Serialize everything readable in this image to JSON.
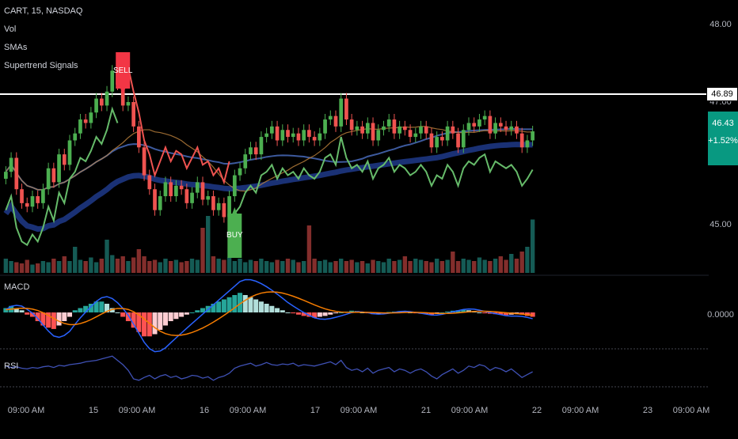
{
  "header": {
    "symbol": "CART, 15, NASDAQ",
    "indicators": [
      "Vol",
      "SMAs",
      "Supertrend Signals"
    ]
  },
  "panes": {
    "macd_label": "MACD",
    "rsi_label": "RSI"
  },
  "price_axis": {
    "ticks": [
      "48.00",
      "47.00",
      "45.00",
      "0.0000"
    ],
    "last_price": "46.89",
    "current_price": "46.43",
    "change": "+1.52%"
  },
  "signals": {
    "sell": "SELL",
    "buy": "BUY"
  },
  "colors": {
    "up": "#26a69a",
    "up_candle": "#4caf50",
    "down": "#ef5350",
    "supertrend_up": "#66bb6a",
    "supertrend_down": "#ef5350",
    "sma_fast": "#42a5f5",
    "sma_slow": "#1e3a8a",
    "macd_line": "#2962ff",
    "signal_line": "#f57c00",
    "rsi_line": "#3f51b5"
  },
  "chart_data": {
    "type": "candlestick",
    "x_tick_labels": [
      "09:00 AM",
      "15",
      "09:00 AM",
      "16",
      "09:00 AM",
      "17",
      "09:00 AM",
      "21",
      "09:00 AM",
      "22",
      "09:00 AM",
      "23",
      "09:00 AM"
    ],
    "y_ticks": [
      48.0,
      47.0,
      45.0
    ],
    "ylim": [
      44.4,
      48.2
    ],
    "close": [
      45.85,
      46.05,
      45.6,
      45.4,
      45.35,
      45.5,
      45.4,
      45.6,
      45.9,
      45.7,
      46.1,
      45.95,
      46.3,
      46.4,
      46.6,
      46.55,
      46.7,
      46.9,
      46.8,
      47.0,
      47.3,
      47.1,
      46.8,
      46.85,
      46.5,
      46.2,
      45.8,
      45.6,
      45.3,
      45.5,
      45.7,
      45.5,
      45.65,
      45.6,
      45.4,
      45.55,
      45.7,
      45.45,
      45.5,
      45.3,
      45.4,
      45.2,
      45.5,
      45.8,
      45.9,
      46.1,
      46.2,
      46.1,
      46.35,
      46.4,
      46.5,
      46.3,
      46.45,
      46.35,
      46.4,
      46.3,
      46.45,
      46.35,
      46.3,
      46.4,
      46.6,
      46.65,
      46.5,
      46.9,
      46.6,
      46.45,
      46.5,
      46.4,
      46.55,
      46.3,
      46.45,
      46.5,
      46.6,
      46.4,
      46.5,
      46.45,
      46.35,
      46.4,
      46.5,
      46.4,
      46.2,
      46.35,
      46.3,
      46.5,
      46.4,
      46.2,
      46.45,
      46.55,
      46.5,
      46.6,
      46.65,
      46.4,
      46.55,
      46.5,
      46.45,
      46.5,
      46.4,
      46.2,
      46.3,
      46.43
    ],
    "volume": [
      0.12,
      0.1,
      0.09,
      0.08,
      0.11,
      0.07,
      0.08,
      0.1,
      0.09,
      0.12,
      0.1,
      0.14,
      0.1,
      0.22,
      0.11,
      0.1,
      0.13,
      0.09,
      0.12,
      0.28,
      0.15,
      0.12,
      0.14,
      0.1,
      0.13,
      0.2,
      0.14,
      0.1,
      0.11,
      0.09,
      0.12,
      0.1,
      0.11,
      0.09,
      0.1,
      0.12,
      0.11,
      0.38,
      0.48,
      0.14,
      0.12,
      0.11,
      0.13,
      0.1,
      0.12,
      0.09,
      0.11,
      0.1,
      0.12,
      0.1,
      0.09,
      0.11,
      0.1,
      0.12,
      0.11,
      0.09,
      0.1,
      0.4,
      0.12,
      0.1,
      0.11,
      0.09,
      0.1,
      0.12,
      0.1,
      0.11,
      0.09,
      0.1,
      0.08,
      0.11,
      0.1,
      0.09,
      0.12,
      0.1,
      0.11,
      0.14,
      0.1,
      0.12,
      0.11,
      0.1,
      0.09,
      0.12,
      0.1,
      0.11,
      0.18,
      0.1,
      0.12,
      0.11,
      0.1,
      0.13,
      0.11,
      0.1,
      0.12,
      0.14,
      0.11,
      0.16,
      0.12,
      0.18,
      0.22,
      0.45
    ],
    "macd_hist": [
      0.1,
      0.15,
      0.1,
      0.05,
      -0.05,
      -0.1,
      -0.2,
      -0.3,
      -0.35,
      -0.38,
      -0.3,
      -0.2,
      -0.1,
      0.05,
      0.1,
      0.15,
      0.2,
      0.25,
      0.25,
      0.2,
      0.1,
      0.0,
      -0.1,
      -0.2,
      -0.35,
      -0.45,
      -0.55,
      -0.55,
      -0.5,
      -0.4,
      -0.3,
      -0.2,
      -0.15,
      -0.1,
      -0.05,
      0.0,
      0.05,
      0.1,
      0.15,
      0.2,
      0.25,
      0.3,
      0.35,
      0.4,
      0.45,
      0.4,
      0.35,
      0.3,
      0.25,
      0.2,
      0.15,
      0.1,
      0.05,
      0.0,
      -0.02,
      -0.05,
      -0.08,
      -0.1,
      -0.12,
      -0.1,
      -0.08,
      -0.05,
      -0.02,
      0.0,
      0.02,
      0.04,
      0.03,
      0.0,
      -0.02,
      -0.04,
      -0.03,
      -0.01,
      0.01,
      0.02,
      0.03,
      0.02,
      0.0,
      -0.02,
      -0.03,
      -0.04,
      -0.05,
      -0.03,
      0.0,
      0.02,
      0.04,
      0.05,
      0.06,
      0.05,
      0.03,
      0.0,
      -0.02,
      -0.03,
      -0.04,
      -0.05,
      -0.06,
      -0.05,
      -0.04,
      -0.05,
      -0.08,
      -0.1
    ],
    "rsi": [
      58,
      56,
      57,
      55,
      54,
      56,
      55,
      57,
      58,
      56,
      59,
      58,
      60,
      61,
      62,
      64,
      65,
      66,
      68,
      70,
      72,
      66,
      60,
      52,
      40,
      38,
      42,
      45,
      40,
      44,
      46,
      42,
      44,
      40,
      42,
      45,
      44,
      41,
      43,
      38,
      42,
      44,
      48,
      55,
      58,
      60,
      62,
      58,
      60,
      63,
      60,
      59,
      61,
      60,
      62,
      58,
      60,
      59,
      58,
      60,
      62,
      64,
      60,
      66,
      56,
      52,
      54,
      50,
      55,
      48,
      52,
      54,
      56,
      50,
      54,
      52,
      48,
      52,
      54,
      50,
      44,
      40,
      46,
      50,
      54,
      48,
      52,
      58,
      56,
      60,
      58,
      52,
      56,
      54,
      50,
      54,
      48,
      42,
      46,
      50
    ]
  }
}
